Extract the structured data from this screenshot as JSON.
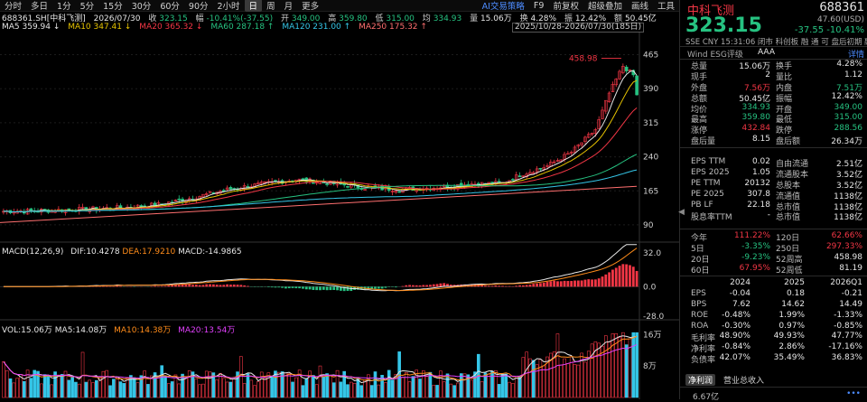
{
  "toolbar": {
    "periods": [
      "分时",
      "多日",
      "1分",
      "5分",
      "15分",
      "30分",
      "60分",
      "90分",
      "2小时",
      "日",
      "周",
      "月",
      "更多"
    ],
    "selected": "日",
    "right_items": [
      "AI交易策略",
      "F9",
      "前复权",
      "超级叠加",
      "画线",
      "工具"
    ]
  },
  "info": {
    "code": "688361.SH[中科飞测]",
    "date": "2026/07/30",
    "close_label": "收",
    "close": "323.15",
    "change_label": "幅",
    "change": "-10.41%(-37.55)",
    "open_label": "开",
    "open": "349.00",
    "high_label": "高",
    "high": "359.80",
    "low_label": "低",
    "low": "315.00",
    "avg_label": "均",
    "avg": "334.93",
    "vol_label": "量",
    "vol": "15.06万",
    "turn_label": "换",
    "turn": "4.28%",
    "amp_label": "振",
    "amp": "12.42%",
    "amt_label": "额",
    "amt": "50.45亿"
  },
  "ma": {
    "ma5": "MA5 359.94 ↓",
    "ma10": "MA10 347.41 ↓",
    "ma20": "MA20 365.32 ↓",
    "ma60": "MA60 287.18 ↑",
    "ma120": "MA120 231.00 ↑",
    "ma250": "MA250 175.32 ↑"
  },
  "range_label": "2025/10/28-2026/07/30(185日)",
  "macd_label": {
    "name": "MACD(12,26,9)",
    "dif": "DIF:10.4278",
    "dea": "DEA:17.9210",
    "macd": "MACD:-14.9865"
  },
  "vol_label": {
    "vol": "VOL:15.06万",
    "ma5": "MA5:14.08万",
    "ma10": "MA10:14.38万",
    "ma20": "MA20:13.54万"
  },
  "chart_data": {
    "type": "candlestick",
    "price_axis_ticks": [
      "465",
      "390",
      "315",
      "240",
      "165",
      "90"
    ],
    "macd_axis_ticks": [
      "32.0",
      "0.0",
      "-28.0"
    ],
    "vol_axis_ticks": [
      "16万",
      "8万"
    ],
    "max_annotation": "458.98",
    "price_ylim": [
      60,
      490
    ]
  },
  "sidebar": {
    "name": "中科飞测",
    "code": "688361",
    "price": "323.15",
    "currency_line": "47.60(USD)",
    "change": "-37.55 -10.41%",
    "sub": "SSE  CNY  15:31:06  闭市  科创板  融  通  可  盘后初期  融  通  深  ...",
    "rating_label": "Wind ESG评级",
    "rating": "AAA",
    "rating_detail": "详情",
    "rows1": [
      {
        "k1": "总量",
        "v1": "15.06万",
        "k2": "换手",
        "v2": "4.28%",
        "c1": "white",
        "c2": "white"
      },
      {
        "k1": "现手",
        "v1": "2",
        "k2": "量比",
        "v2": "1.12",
        "c1": "white",
        "c2": "white"
      },
      {
        "k1": "外盘",
        "v1": "7.56万",
        "k2": "内盘",
        "v2": "7.51万",
        "c1": "red",
        "c2": "green"
      },
      {
        "k1": "总额",
        "v1": "50.45亿",
        "k2": "振幅",
        "v2": "12.42%",
        "c1": "white",
        "c2": "white"
      },
      {
        "k1": "均价",
        "v1": "334.93",
        "k2": "开盘",
        "v2": "349.00",
        "c1": "green",
        "c2": "green"
      },
      {
        "k1": "最高",
        "v1": "359.80",
        "k2": "最低",
        "v2": "315.00",
        "c1": "green",
        "c2": "green"
      },
      {
        "k1": "涨停",
        "v1": "432.84",
        "k2": "跌停",
        "v2": "288.56",
        "c1": "red",
        "c2": "green"
      },
      {
        "k1": "盘后量",
        "v1": "8.15",
        "k2": "盘后额",
        "v2": "26.34万",
        "c1": "white",
        "c2": "white"
      }
    ],
    "rows2": [
      {
        "k1": "EPS TTM",
        "v1": "0.02",
        "k2": "自由流通",
        "v2": "2.51亿",
        "c1": "white",
        "c2": "white"
      },
      {
        "k1": "EPS 2025",
        "v1": "1.05",
        "k2": "流通股本",
        "v2": "3.52亿",
        "c1": "white",
        "c2": "white"
      },
      {
        "k1": "PE TTM",
        "v1": "20132",
        "k2": "总股本",
        "v2": "3.52亿",
        "c1": "white",
        "c2": "white"
      },
      {
        "k1": "PE 2025",
        "v1": "307.8",
        "k2": "流通值",
        "v2": "1138亿",
        "c1": "white",
        "c2": "white"
      },
      {
        "k1": "PB LF",
        "v1": "22.18",
        "k2": "总市值",
        "v2": "1138亿",
        "c1": "white",
        "c2": "white"
      },
      {
        "k1": "股息率TTM",
        "v1": "-",
        "k2": "总市值",
        "v2": "1138亿",
        "c1": "white",
        "c2": "white"
      }
    ],
    "rows3": [
      {
        "k1": "今年",
        "v1": "111.22%",
        "k2": "120日",
        "v2": "62.66%",
        "c1": "red",
        "c2": "red"
      },
      {
        "k1": "5日",
        "v1": "-3.35%",
        "k2": "250日",
        "v2": "297.33%",
        "c1": "green",
        "c2": "red"
      },
      {
        "k1": "20日",
        "v1": "-9.23%",
        "k2": "52周高",
        "v2": "458.98",
        "c1": "green",
        "c2": "white"
      },
      {
        "k1": "60日",
        "v1": "67.95%",
        "k2": "52周低",
        "v2": "81.19",
        "c1": "red",
        "c2": "white"
      }
    ],
    "fin_header": [
      "",
      "2024",
      "2025",
      "2026Q1"
    ],
    "fin_rows": [
      {
        "k": "EPS",
        "a": "-0.04",
        "b": "0.18",
        "c": "-0.21"
      },
      {
        "k": "BPS",
        "a": "7.62",
        "b": "14.62",
        "c": "14.49"
      },
      {
        "k": "ROE",
        "a": "-0.48%",
        "b": "1.99%",
        "c": "-1.33%"
      },
      {
        "k": "ROA",
        "a": "-0.30%",
        "b": "0.97%",
        "c": "-0.85%"
      },
      {
        "k": "毛利率",
        "a": "48.90%",
        "b": "49.93%",
        "c": "47.77%"
      },
      {
        "k": "净利率",
        "a": "-0.84%",
        "b": "2.86%",
        "c": "-17.16%"
      },
      {
        "k": "负债率",
        "a": "42.07%",
        "b": "35.49%",
        "c": "36.83%"
      }
    ],
    "tab1": "净利润",
    "tab2": "营业总收入",
    "bottom_value": "6.67亿"
  }
}
